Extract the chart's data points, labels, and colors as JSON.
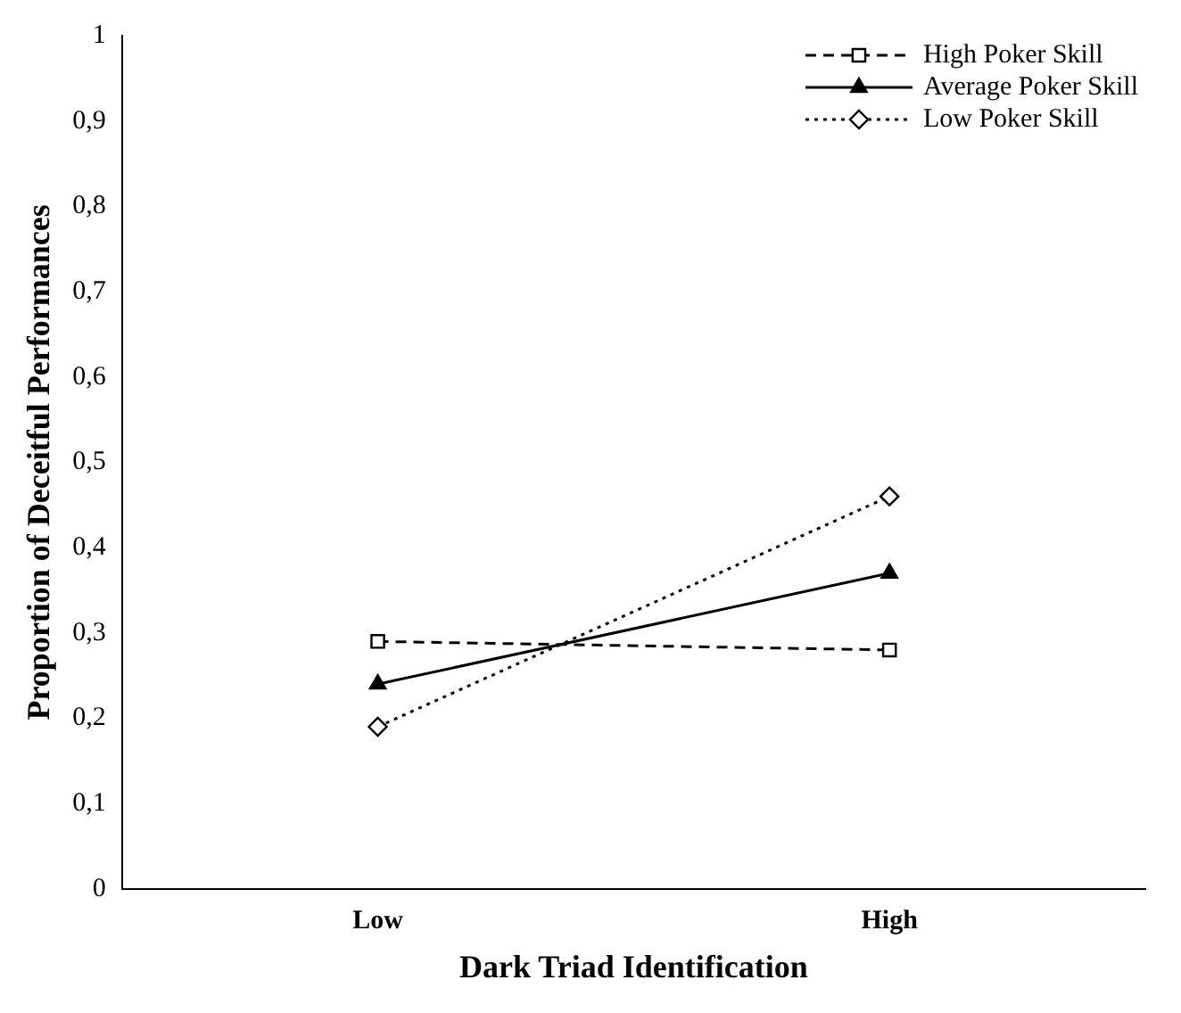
{
  "chart_data": {
    "type": "line",
    "xlabel": "Dark Triad Identification",
    "ylabel": "Proportion of Deceitful Performances",
    "categories": [
      "Low",
      "High"
    ],
    "series": [
      {
        "name": "High Poker Skill",
        "color": "#000000",
        "values": [
          0.29,
          0.28
        ],
        "line_style": "dashed",
        "marker": "square"
      },
      {
        "name": "Average Poker Skill",
        "color": "#000000",
        "values": [
          0.24,
          0.37
        ],
        "line_style": "solid",
        "marker": "triangle"
      },
      {
        "name": "Low Poker Skill",
        "color": "#000000",
        "values": [
          0.19,
          0.46
        ],
        "line_style": "dotted",
        "marker": "diamond"
      }
    ],
    "ylim": [
      0,
      1
    ],
    "yticks": [
      0,
      {
        "value": 0.1,
        "label": "0,1"
      },
      {
        "value": 0.2,
        "label": "0,2"
      },
      {
        "value": 0.3,
        "label": "0,3"
      },
      {
        "value": 0.4,
        "label": "0,4"
      },
      {
        "value": 0.5,
        "label": "0,5"
      },
      {
        "value": 0.6,
        "label": "0,6"
      },
      {
        "value": 0.7,
        "label": "0,7"
      },
      {
        "value": 0.8,
        "label": "0,8"
      },
      {
        "value": 0.9,
        "label": "0,9"
      },
      1
    ],
    "grid": false,
    "legend": "top right"
  }
}
